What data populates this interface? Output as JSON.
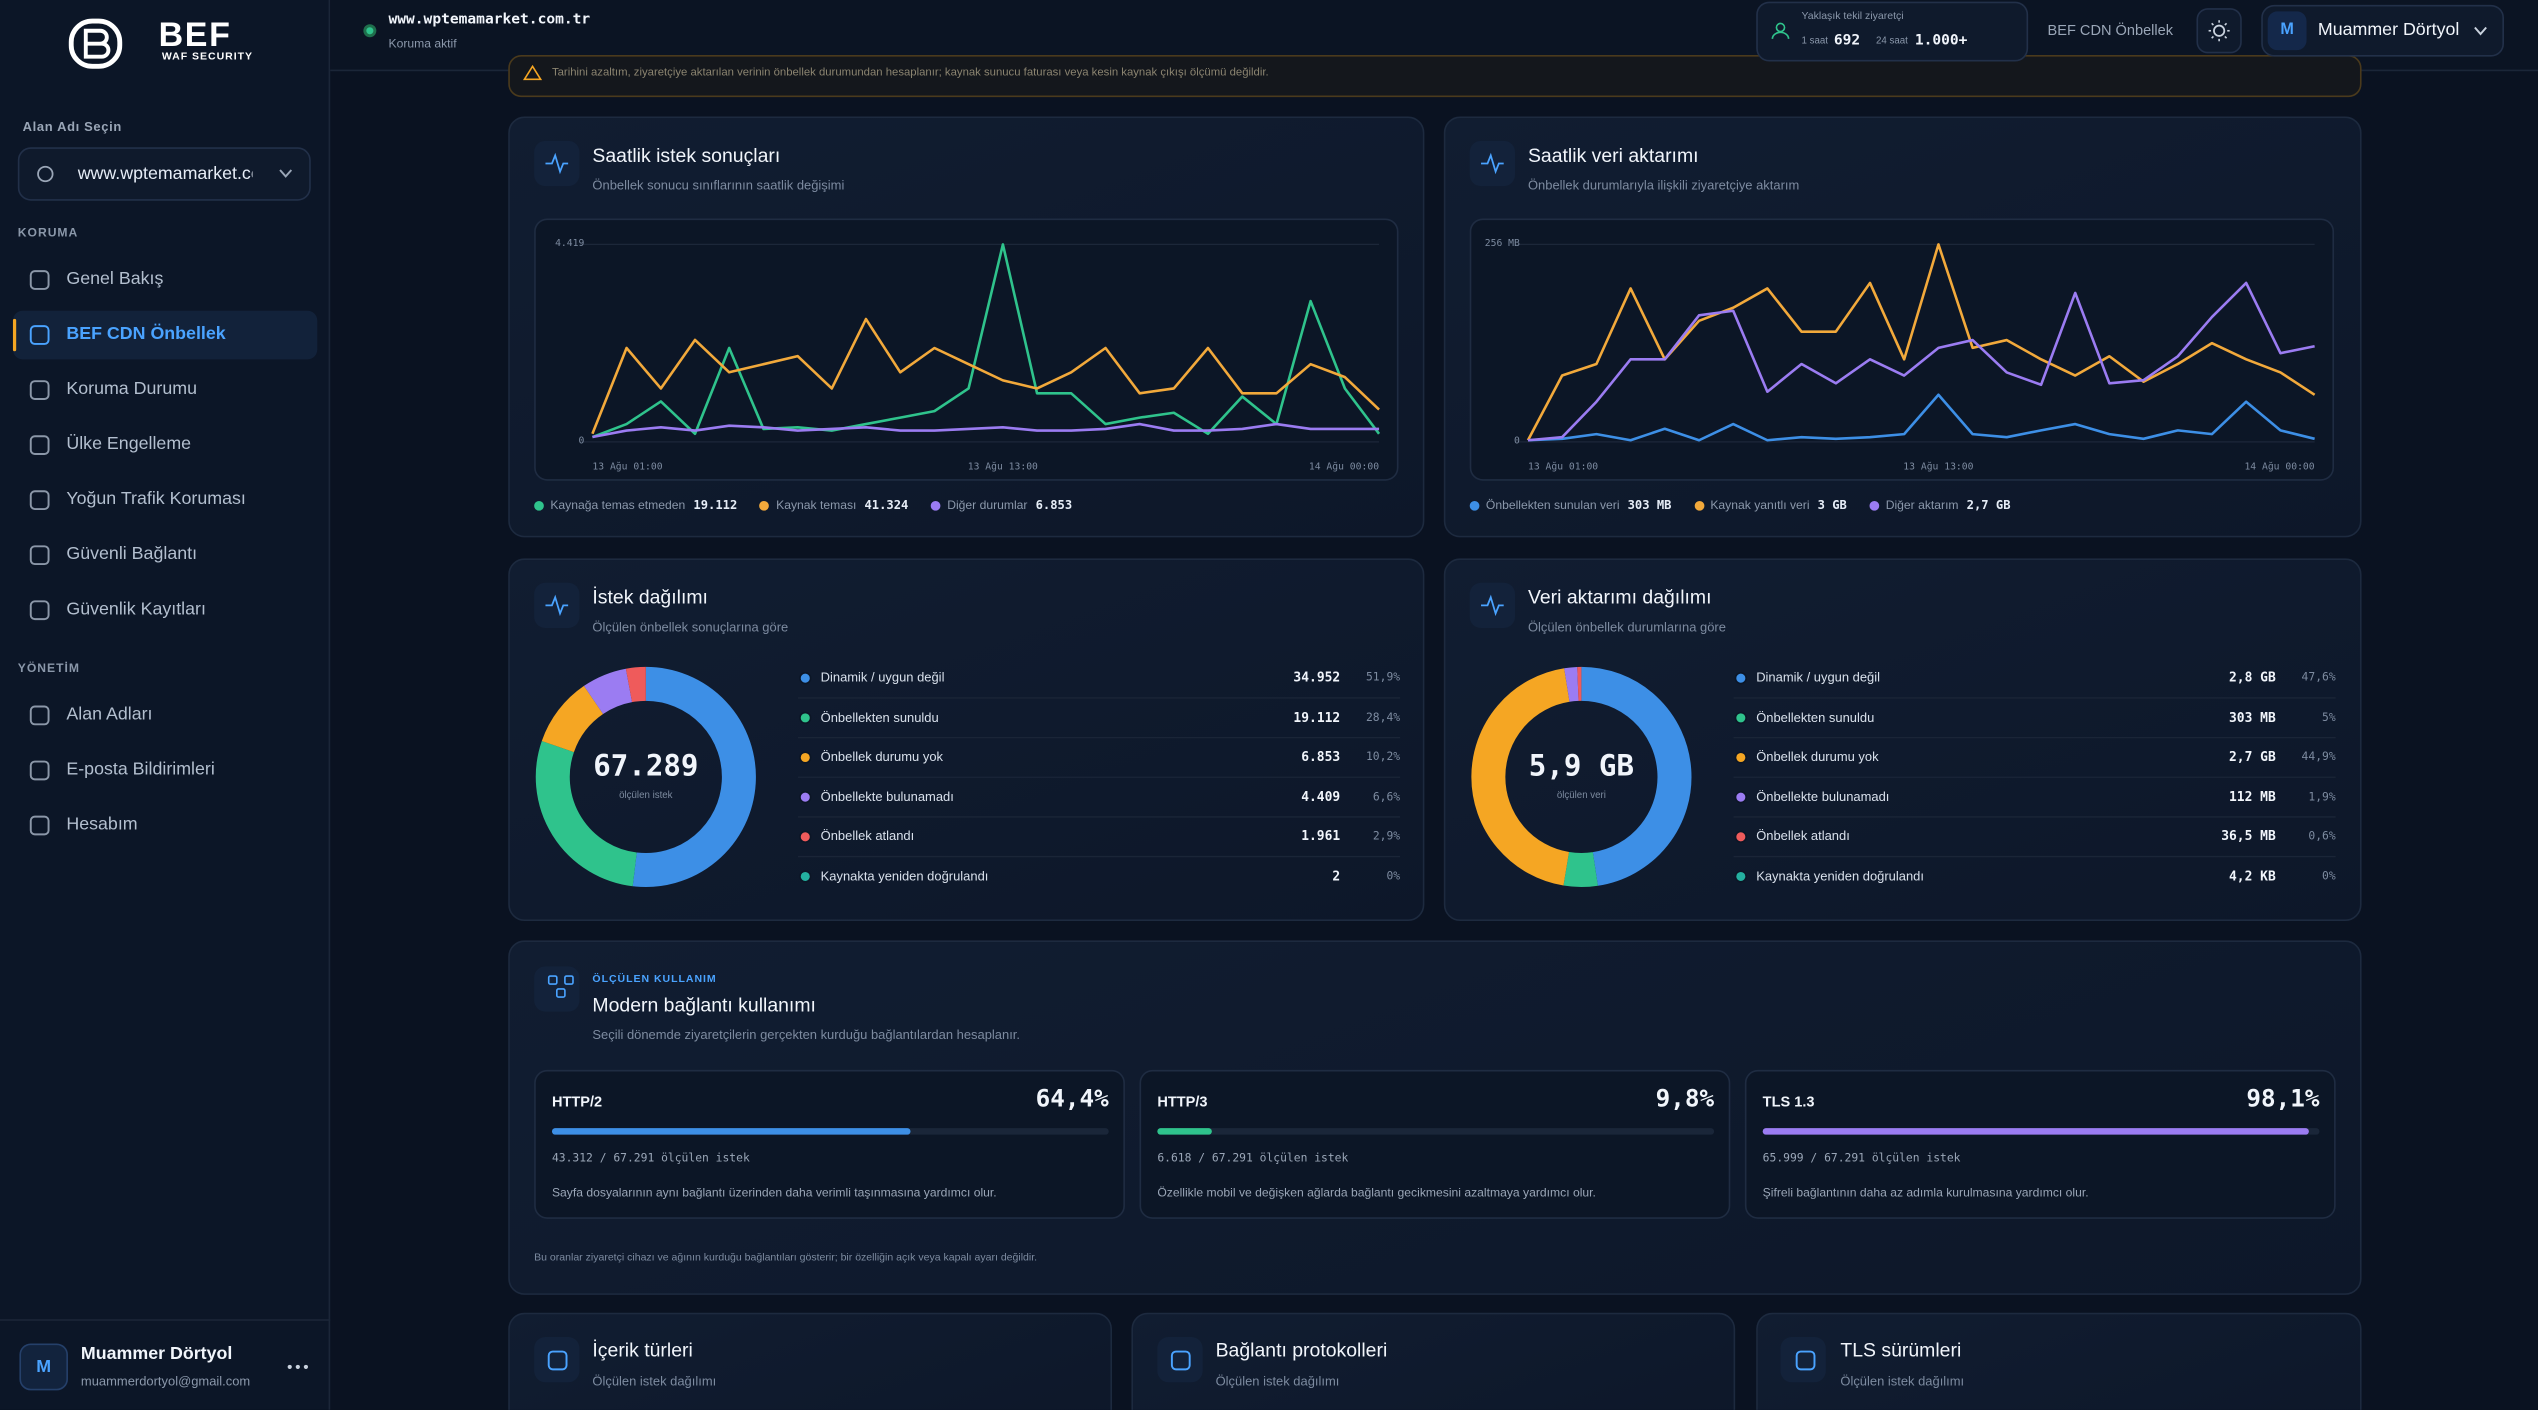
{
  "sidebar": {
    "brand": "BEF",
    "brand_tagline": "WAF SECURITY",
    "domain_label": "Alan Adı Seçin",
    "domain": "www.wptemamarket.com.tr",
    "sections": [
      {
        "title": "KORUMA",
        "items": [
          {
            "label": "Genel Bakış"
          },
          {
            "label": "BEF CDN Önbellek",
            "active": true
          },
          {
            "label": "Koruma Durumu"
          },
          {
            "label": "Ülke Engelleme"
          },
          {
            "label": "Yoğun Trafik Koruması"
          },
          {
            "label": "Güvenli Bağlantı"
          },
          {
            "label": "Güvenlik Kayıtları"
          }
        ]
      },
      {
        "title": "YÖNETİM",
        "items": [
          {
            "label": "Alan Adları"
          },
          {
            "label": "E-posta Bildirimleri"
          },
          {
            "label": "Hesabım"
          }
        ]
      }
    ],
    "user": {
      "initial": "M",
      "name": "Muammer Dörtyol",
      "email": "muammerdortyol@gmail.com"
    }
  },
  "topbar": {
    "site": "www.wptemamarket.com.tr",
    "status": "Koruma aktif",
    "visitors": {
      "label": "Yaklaşık tekil ziyaretçi",
      "periods": [
        {
          "label": "1 saat",
          "value": "692"
        },
        {
          "label": "24 saat",
          "value": "1.000+"
        }
      ]
    },
    "product": "BEF CDN Önbellek",
    "user": {
      "initial": "M",
      "name": "Muammer Dörtyol"
    }
  },
  "notice": "Tarihini azaltım, ziyaretçiye aktarılan verinin önbellek durumundan hesaplanır; kaynak sunucu faturası veya kesin kaynak çıkışı ölçümü değildir.",
  "panels": [
    {
      "title": "Saatlik istek sonuçları",
      "subtitle": "Önbellek sonucu sınıflarının saatlik değişimi",
      "chart": {
        "type": "line",
        "categories": [
          "13 Ağu 01:00",
          null,
          null,
          null,
          null,
          null,
          null,
          null,
          null,
          null,
          null,
          null,
          "13 Ağu 13:00",
          null,
          null,
          null,
          null,
          null,
          null,
          null,
          null,
          null,
          null,
          "14 Ağu 00:00"
        ],
        "ylim": [
          0,
          4419
        ],
        "yticks": [
          0,
          {
            "value": 4419,
            "label": "4.419"
          }
        ],
        "grid": true,
        "series": [
          {
            "name": "Kaynağa temas etmeden",
            "total": "19.112",
            "color": "#2fc38c",
            "values": [
              109,
              398,
              905,
              181,
              2100,
              290,
              326,
              253,
              398,
              543,
              688,
              1195,
              4419,
              1086,
              1086,
              398,
              543,
              652,
              181,
              1014,
              398,
              3150,
              1195,
              181
            ]
          },
          {
            "name": "Kaynak teması",
            "total": "41.324",
            "color": "#f2a93b",
            "values": [
              181,
              2100,
              1195,
              2281,
              1556,
              1738,
              1919,
              1195,
              2751,
              1556,
              2100,
              1738,
              1376,
              1195,
              1556,
              2100,
              1086,
              1195,
              2100,
              1086,
              1086,
              1738,
              1448,
              724
            ]
          },
          {
            "name": "Diğer durumlar",
            "total": "6.853",
            "color": "#9b7cf2",
            "values": [
              109,
              253,
              326,
              253,
              362,
              326,
              253,
              290,
              326,
              253,
              253,
              290,
              326,
              253,
              253,
              290,
              398,
              253,
              253,
              290,
              398,
              290,
              290,
              290
            ]
          }
        ]
      }
    },
    {
      "title": "Saatlik veri aktarımı",
      "subtitle": "Önbellek durumlarıyla ilişkili ziyaretçiye aktarım",
      "chart": {
        "type": "line",
        "categories": [
          "13 Ağu 01:00",
          null,
          null,
          null,
          null,
          null,
          null,
          null,
          null,
          null,
          null,
          null,
          "13 Ağu 13:00",
          null,
          null,
          null,
          null,
          null,
          null,
          null,
          null,
          null,
          null,
          "14 Ağu 00:00"
        ],
        "ylim": [
          0,
          256
        ],
        "yticks": [
          0,
          {
            "value": 256,
            "label": "256 MB"
          }
        ],
        "grid": true,
        "series": [
          {
            "name": "Önbellekten sunulan veri",
            "total": "303 MB",
            "color": "#3d8fe6",
            "values": [
              2,
              4,
              10,
              2,
              17,
              2,
              23,
              2,
              6,
              4,
              6,
              10,
              61,
              10,
              6,
              15,
              23,
              10,
              4,
              15,
              10,
              52,
              15,
              4
            ]
          },
          {
            "name": "Kaynak yanıtlı veri",
            "total": "3 GB",
            "color": "#f2a93b",
            "values": [
              2,
              86,
              101,
              199,
              107,
              157,
              174,
              199,
              143,
              143,
              206,
              107,
              256,
              122,
              132,
              107,
              86,
              111,
              78,
              101,
              128,
              107,
              90,
              61
            ]
          },
          {
            "name": "Diğer aktarım",
            "total": "2,7 GB",
            "color": "#9b7cf2",
            "values": [
              2,
              6,
              52,
              107,
              107,
              164,
              170,
              65,
              101,
              76,
              107,
              86,
              122,
              132,
              90,
              74,
              193,
              76,
              80,
              111,
              162,
              206,
              115,
              124
            ]
          }
        ]
      }
    },
    {
      "title": "İstek dağılımı",
      "subtitle": "Ölçülen önbellek sonuçlarına göre",
      "chart": {
        "type": "donut",
        "center_value": "67.289",
        "center_label": "ölçülen istek",
        "categories": [
          "Dinamik / uygun değil",
          "Önbellekten sunuldu",
          "Önbellek durumu yok",
          "Önbellekte bulunamadı",
          "Önbellek atlandı",
          "Kaynakta yeniden doğrulandı"
        ],
        "colors": [
          "#3d8fe6",
          "#2fc38c",
          "#f5a623",
          "#9b7cf2",
          "#ef5b5b",
          "#24b0a0"
        ],
        "counts": [
          "34.952",
          "19.112",
          "6.853",
          "4.409",
          "1.961",
          "2"
        ],
        "values": [
          51.9,
          28.4,
          10.2,
          6.6,
          2.9,
          0
        ],
        "value_labels": [
          "51,9%",
          "28,4%",
          "10,2%",
          "6,6%",
          "2,9%",
          "0%"
        ]
      }
    },
    {
      "title": "Veri aktarımı dağılımı",
      "subtitle": "Ölçülen önbellek durumlarına göre",
      "chart": {
        "type": "donut",
        "center_value": "5,9 GB",
        "center_label": "ölçülen veri",
        "categories": [
          "Dinamik / uygun değil",
          "Önbellekten sunuldu",
          "Önbellek durumu yok",
          "Önbellekte bulunamadı",
          "Önbellek atlandı",
          "Kaynakta yeniden doğrulandı"
        ],
        "colors": [
          "#3d8fe6",
          "#2fc38c",
          "#f5a623",
          "#9b7cf2",
          "#ef5b5b",
          "#24b0a0"
        ],
        "counts": [
          "2,8 GB",
          "303 MB",
          "2,7 GB",
          "112 MB",
          "36,5 MB",
          "4,2 KB"
        ],
        "values": [
          47.6,
          5,
          44.9,
          1.9,
          0.6,
          0
        ],
        "value_labels": [
          "47,6%",
          "5%",
          "44,9%",
          "1,9%",
          "0,6%",
          "0%"
        ]
      }
    }
  ],
  "usage": {
    "eyebrow": "ÖLÇÜLEN KULLANIM",
    "title": "Modern bağlantı kullanımı",
    "subtitle": "Seçili dönemde ziyaretçilerin gerçekten kurduğu bağlantılardan hesaplanır.",
    "items": [
      {
        "name": "HTTP/2",
        "value": 64.4,
        "value_label": "64,4%",
        "color": "#3d8fe6",
        "count": "43.312 / 67.291 ölçülen istek",
        "description": "Sayfa dosyalarının aynı bağlantı üzerinden daha verimli taşınmasına yardımcı olur."
      },
      {
        "name": "HTTP/3",
        "value": 9.8,
        "value_label": "9,8%",
        "color": "#2fc38c",
        "count": "6.618 / 67.291 ölçülen istek",
        "description": "Özellikle mobil ve değişken ağlarda bağlantı gecikmesini azaltmaya yardımcı olur."
      },
      {
        "name": "TLS 1.3",
        "value": 98.1,
        "value_label": "98,1%",
        "color": "#9b7cf2",
        "count": "65.999 / 67.291 ölçülen istek",
        "description": "Şifreli bağlantının daha az adımla kurulmasına yardımcı olur."
      }
    ],
    "footnote": "Bu oranlar ziyaretçi cihazı ve ağının kurduğu bağlantıları gösterir; bir özelliğin açık veya kapalı ayarı değildir."
  },
  "bottom_panels": [
    {
      "title": "İçerik türleri",
      "subtitle": "Ölçülen istek dağılımı"
    },
    {
      "title": "Bağlantı protokolleri",
      "subtitle": "Ölçülen istek dağılımı"
    },
    {
      "title": "TLS sürümleri",
      "subtitle": "Ölçülen istek dağılımı"
    }
  ]
}
